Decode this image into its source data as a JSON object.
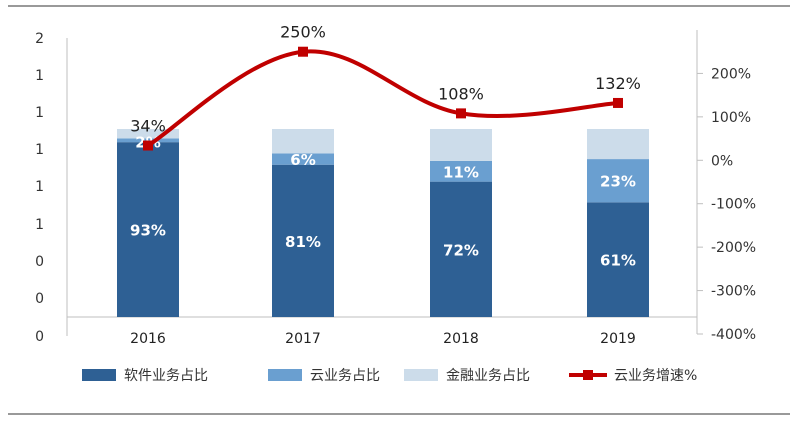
{
  "chart_data": {
    "type": "bar",
    "categories": [
      "2016",
      "2017",
      "2018",
      "2019"
    ],
    "left_axis": {
      "tick_labels": [
        "0",
        "0",
        "0",
        "1",
        "1",
        "1",
        "1",
        "1",
        "2"
      ]
    },
    "right_axis": {
      "ylim": [
        -400,
        250
      ],
      "tick_labels": [
        "-400%",
        "-300%",
        "-200%",
        "-100%",
        "0%",
        "100%",
        "200%"
      ]
    },
    "series": [
      {
        "name": "软件业务占比",
        "kind": "stacked-bar",
        "color": "#2e6094",
        "values": [
          93,
          81,
          72,
          61
        ],
        "labels": [
          "93%",
          "81%",
          "72%",
          "61%"
        ]
      },
      {
        "name": "云业务占比",
        "kind": "stacked-bar",
        "color": "#6a9fd0",
        "values": [
          2,
          6,
          11,
          23
        ],
        "labels": [
          "2%",
          "6%",
          "11%",
          "23%"
        ]
      },
      {
        "name": "金融业务占比",
        "kind": "stacked-bar",
        "color": "#ccdcea",
        "values": [
          5,
          13,
          17,
          16
        ],
        "labels": [
          "",
          "",
          "",
          ""
        ]
      },
      {
        "name": "云业务增速%",
        "kind": "line",
        "axis": "right",
        "color": "#c00000",
        "values": [
          34,
          250,
          108,
          132
        ],
        "labels": [
          "34%",
          "250%",
          "108%",
          "132%"
        ]
      }
    ],
    "legend_position": "bottom"
  }
}
